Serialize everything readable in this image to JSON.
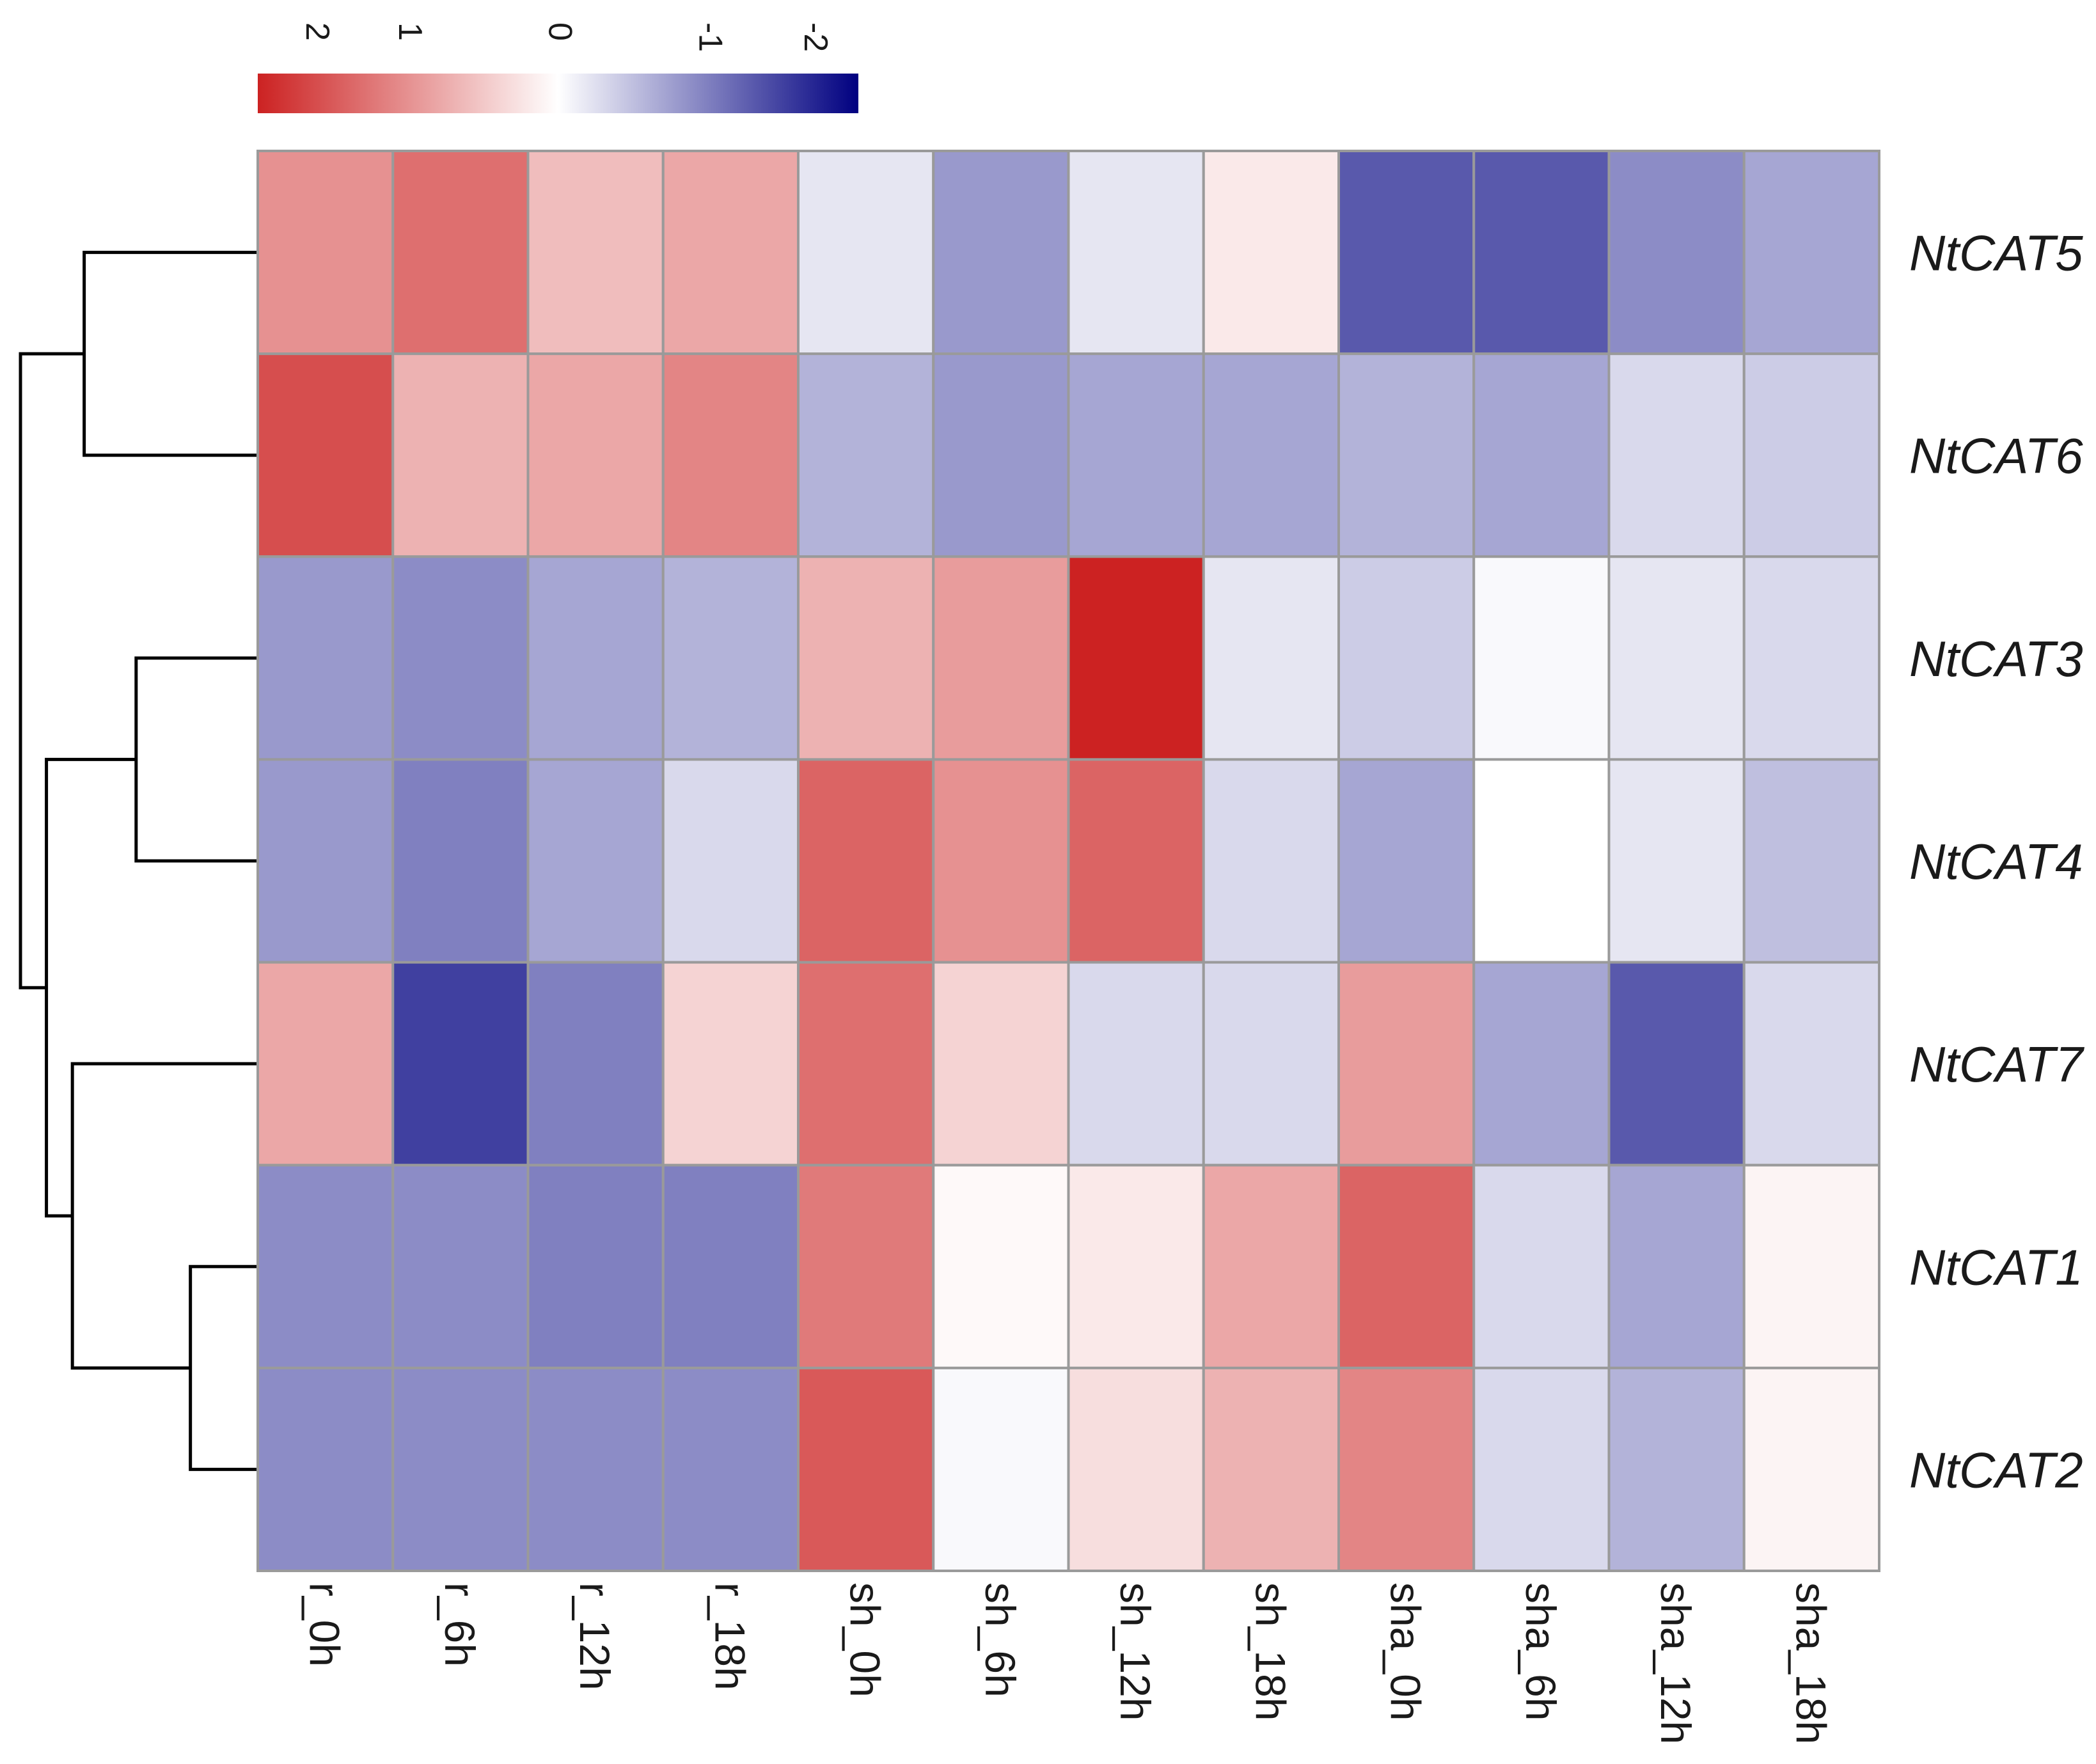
{
  "chart_data": {
    "type": "heatmap",
    "title": "",
    "xlabel": "",
    "ylabel": "",
    "columns": [
      "r_0h",
      "r_6h",
      "r_12h",
      "r_18h",
      "sh_0h",
      "sh_6h",
      "sh_12h",
      "sh_18h",
      "sha_0h",
      "sha_6h",
      "sha_12h",
      "sha_18h"
    ],
    "rows": [
      "NtCAT5",
      "NtCAT6",
      "NtCAT3",
      "NtCAT4",
      "NtCAT7",
      "NtCAT1",
      "NtCAT2"
    ],
    "values": [
      [
        1.0,
        1.3,
        0.6,
        0.8,
        -0.2,
        -0.8,
        -0.2,
        0.2,
        -1.3,
        -1.3,
        -0.9,
        -0.7
      ],
      [
        1.6,
        0.7,
        0.8,
        1.1,
        -0.6,
        -0.8,
        -0.7,
        -0.7,
        -0.6,
        -0.7,
        -0.3,
        -0.4
      ],
      [
        -0.8,
        -0.9,
        -0.7,
        -0.6,
        0.7,
        0.9,
        2.0,
        -0.2,
        -0.4,
        -0.05,
        -0.2,
        -0.3
      ],
      [
        -0.8,
        -1.0,
        -0.7,
        -0.3,
        1.4,
        1.0,
        1.4,
        -0.3,
        -0.7,
        0.0,
        -0.2,
        -0.5
      ],
      [
        0.8,
        -1.5,
        -1.0,
        0.4,
        1.3,
        0.4,
        -0.3,
        -0.3,
        0.9,
        -0.7,
        -1.3,
        -0.3
      ],
      [
        -0.9,
        -0.9,
        -1.0,
        -1.0,
        1.2,
        0.05,
        0.2,
        0.8,
        1.4,
        -0.3,
        -0.7,
        0.1
      ],
      [
        -0.9,
        -0.9,
        -0.9,
        -0.9,
        1.5,
        -0.05,
        0.3,
        0.7,
        1.1,
        -0.3,
        -0.6,
        0.1
      ]
    ],
    "color_scale": {
      "low_value": -2,
      "high_value": 2,
      "low_color": "#000080",
      "mid_color": "#ffffff",
      "high_color": "#cc2222"
    },
    "legend_ticks": [
      "2",
      "1",
      "0",
      "-1",
      "-2"
    ],
    "legend_tick_values": [
      2,
      1,
      0,
      -1,
      -2
    ],
    "row_dendrogram": {
      "merges": [
        [
          "NtCAT5",
          "NtCAT6"
        ],
        [
          "NtCAT3",
          "NtCAT4"
        ],
        [
          "NtCAT1",
          "NtCAT2"
        ],
        [
          "NtCAT7",
          "NtCAT1+NtCAT2"
        ],
        [
          "NtCAT3+NtCAT4",
          "NtCAT7+NtCAT1+NtCAT2"
        ],
        [
          "NtCAT5+NtCAT6",
          "NtCAT3+NtCAT4+NtCAT7+NtCAT1+NtCAT2"
        ]
      ],
      "heights": [
        0.73,
        0.51,
        0.28,
        0.78,
        0.89,
        1.0
      ]
    }
  }
}
